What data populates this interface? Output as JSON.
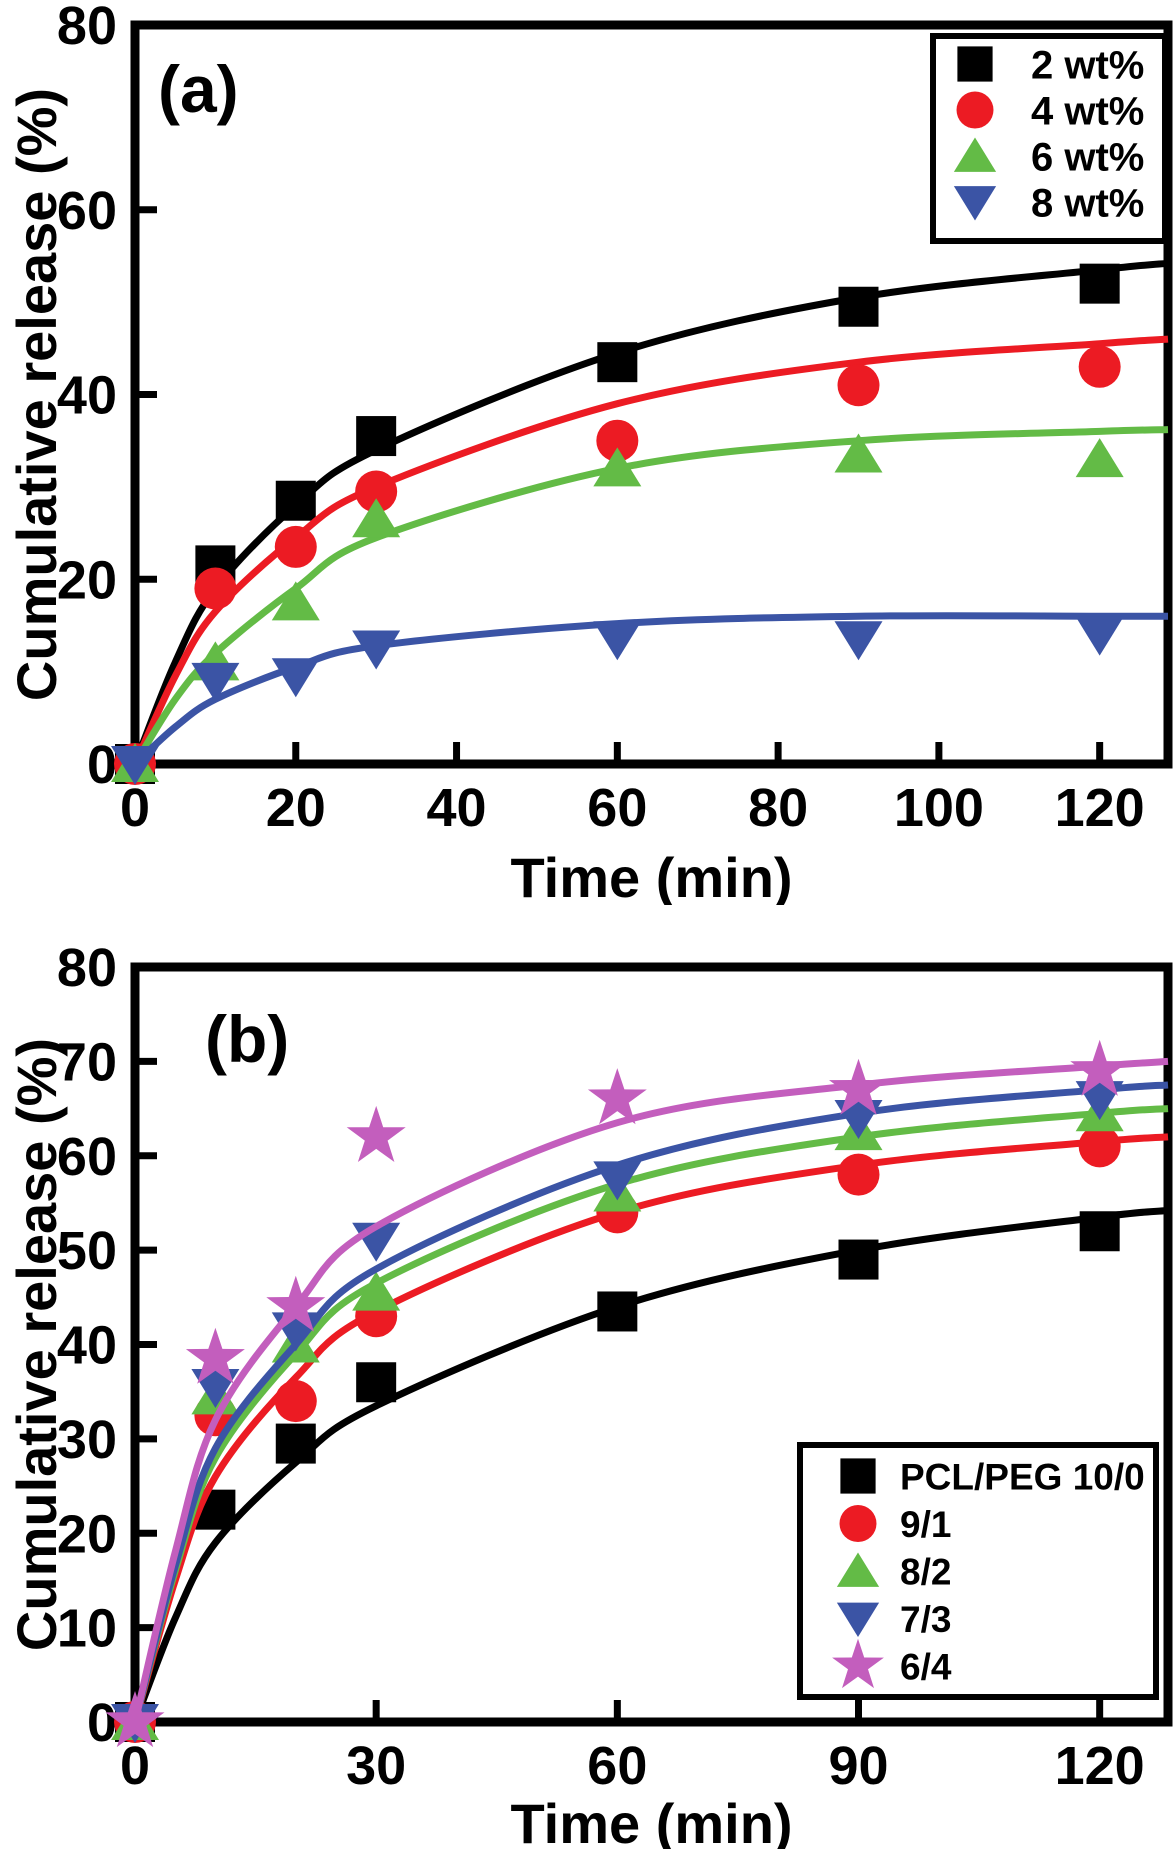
{
  "figure": {
    "background": "#ffffff"
  },
  "chart_data": [
    {
      "id": "a",
      "type": "line-scatter",
      "panel_label": "(a)",
      "xlabel": "Time (min)",
      "ylabel": "Cumulative release (%)",
      "xlim": [
        0,
        128.5
      ],
      "ylim": [
        0,
        80
      ],
      "x_ticks": [
        0,
        20,
        40,
        60,
        80,
        100,
        120
      ],
      "y_ticks": [
        0,
        20,
        40,
        60,
        80
      ],
      "grid": false,
      "legend_position": "top-right",
      "axis_color": "#000000",
      "series": [
        {
          "name": "2 wt%",
          "marker": "square",
          "color": "#000000",
          "points": [
            [
              0,
              0
            ],
            [
              10,
              21.5
            ],
            [
              20,
              28.5
            ],
            [
              30,
              35.5
            ],
            [
              60,
              43.5
            ],
            [
              90,
              49.5
            ],
            [
              120,
              52
            ]
          ],
          "fit_curve": [
            [
              0,
              0
            ],
            [
              5,
              11
            ],
            [
              10,
              19
            ],
            [
              20,
              28
            ],
            [
              30,
              34
            ],
            [
              60,
              44.5
            ],
            [
              90,
              50.5
            ],
            [
              120,
              53.5
            ],
            [
              128.5,
              54.2
            ]
          ]
        },
        {
          "name": "4 wt%",
          "marker": "circle",
          "color": "#EC1B23",
          "points": [
            [
              0,
              0
            ],
            [
              10,
              19
            ],
            [
              20,
              23.5
            ],
            [
              30,
              29.5
            ],
            [
              60,
              35
            ],
            [
              90,
              41
            ],
            [
              120,
              43
            ]
          ],
          "fit_curve": [
            [
              0,
              0
            ],
            [
              5,
              9.5
            ],
            [
              10,
              16.5
            ],
            [
              20,
              24.5
            ],
            [
              30,
              30
            ],
            [
              60,
              39
            ],
            [
              90,
              43.5
            ],
            [
              120,
              45.5
            ],
            [
              128.5,
              46
            ]
          ]
        },
        {
          "name": "6 wt%",
          "marker": "triangle-up",
          "color": "#63BB46",
          "points": [
            [
              0,
              0
            ],
            [
              10,
              11
            ],
            [
              20,
              17.5
            ],
            [
              30,
              26.5
            ],
            [
              60,
              32
            ],
            [
              90,
              33.5
            ],
            [
              120,
              33
            ]
          ],
          "fit_curve": [
            [
              0,
              0
            ],
            [
              5,
              7
            ],
            [
              10,
              12
            ],
            [
              20,
              19
            ],
            [
              30,
              24.5
            ],
            [
              60,
              32
            ],
            [
              90,
              35
            ],
            [
              120,
              36
            ],
            [
              128.5,
              36.2
            ]
          ]
        },
        {
          "name": "8 wt%",
          "marker": "triangle-down",
          "color": "#3B54A5",
          "points": [
            [
              0,
              0
            ],
            [
              10,
              9
            ],
            [
              20,
              9.5
            ],
            [
              30,
              12.5
            ],
            [
              60,
              13.5
            ],
            [
              90,
              13.5
            ],
            [
              120,
              14
            ]
          ],
          "fit_curve": [
            [
              0,
              0
            ],
            [
              5,
              4
            ],
            [
              10,
              7
            ],
            [
              20,
              10.5
            ],
            [
              30,
              12.8
            ],
            [
              60,
              15.2
            ],
            [
              90,
              16
            ],
            [
              120,
              16
            ],
            [
              128.5,
              16
            ]
          ]
        }
      ]
    },
    {
      "id": "b",
      "type": "line-scatter",
      "panel_label": "(b)",
      "xlabel": "Time (min)",
      "ylabel": "Cumulative release (%)",
      "xlim": [
        0,
        128.5
      ],
      "ylim": [
        0,
        80
      ],
      "x_ticks": [
        0,
        30,
        60,
        90,
        120
      ],
      "y_ticks": [
        0,
        10,
        20,
        30,
        40,
        50,
        60,
        70,
        80
      ],
      "grid": false,
      "legend_position": "bottom-right",
      "axis_color": "#000000",
      "series": [
        {
          "name": "PCL/PEG 10/0",
          "marker": "square",
          "color": "#000000",
          "points": [
            [
              0,
              0
            ],
            [
              10,
              22.5
            ],
            [
              20,
              29.5
            ],
            [
              30,
              36
            ],
            [
              60,
              43.5
            ],
            [
              90,
              49
            ],
            [
              120,
              52
            ]
          ],
          "fit_curve": [
            [
              0,
              0
            ],
            [
              5,
              11
            ],
            [
              10,
              19
            ],
            [
              20,
              27.5
            ],
            [
              30,
              33.5
            ],
            [
              60,
              44
            ],
            [
              90,
              50
            ],
            [
              120,
              53.5
            ],
            [
              128.5,
              54.2
            ]
          ]
        },
        {
          "name": "9/1",
          "marker": "circle",
          "color": "#EC1B23",
          "points": [
            [
              0,
              0
            ],
            [
              10,
              32.5
            ],
            [
              20,
              34
            ],
            [
              30,
              43
            ],
            [
              60,
              54
            ],
            [
              90,
              58
            ],
            [
              120,
              61
            ]
          ],
          "fit_curve": [
            [
              0,
              0
            ],
            [
              5,
              15
            ],
            [
              10,
              26
            ],
            [
              20,
              36.5
            ],
            [
              30,
              43.5
            ],
            [
              60,
              54
            ],
            [
              90,
              59
            ],
            [
              120,
              61.5
            ],
            [
              128.5,
              62
            ]
          ]
        },
        {
          "name": "8/2",
          "marker": "triangle-up",
          "color": "#63BB46",
          "points": [
            [
              0,
              0
            ],
            [
              10,
              34.5
            ],
            [
              20,
              40
            ],
            [
              30,
              45.5
            ],
            [
              60,
              56
            ],
            [
              90,
              62.5
            ],
            [
              120,
              64.5
            ]
          ],
          "fit_curve": [
            [
              0,
              0
            ],
            [
              5,
              16
            ],
            [
              10,
              28
            ],
            [
              20,
              39
            ],
            [
              30,
              46.5
            ],
            [
              60,
              57
            ],
            [
              90,
              62
            ],
            [
              120,
              64.5
            ],
            [
              128.5,
              65
            ]
          ]
        },
        {
          "name": "7/3",
          "marker": "triangle-down",
          "color": "#3B54A5",
          "points": [
            [
              0,
              0
            ],
            [
              10,
              35.5
            ],
            [
              20,
              41.5
            ],
            [
              30,
              51
            ],
            [
              60,
              57.5
            ],
            [
              90,
              64
            ],
            [
              120,
              66
            ]
          ],
          "fit_curve": [
            [
              0,
              0
            ],
            [
              5,
              16.5
            ],
            [
              10,
              29
            ],
            [
              20,
              40
            ],
            [
              30,
              48
            ],
            [
              60,
              59
            ],
            [
              90,
              64.5
            ],
            [
              120,
              67
            ],
            [
              128.5,
              67.5
            ]
          ]
        },
        {
          "name": "6/4",
          "marker": "star",
          "color": "#C35EBD",
          "points": [
            [
              0,
              0
            ],
            [
              10,
              38.5
            ],
            [
              20,
              44
            ],
            [
              30,
              62
            ],
            [
              60,
              66
            ],
            [
              90,
              67
            ],
            [
              120,
              69
            ]
          ],
          "fit_curve": [
            [
              0,
              0
            ],
            [
              5,
              18
            ],
            [
              10,
              32
            ],
            [
              20,
              44
            ],
            [
              30,
              52.5
            ],
            [
              60,
              63.5
            ],
            [
              90,
              67.5
            ],
            [
              120,
              69.5
            ],
            [
              128.5,
              70
            ]
          ]
        }
      ]
    }
  ]
}
